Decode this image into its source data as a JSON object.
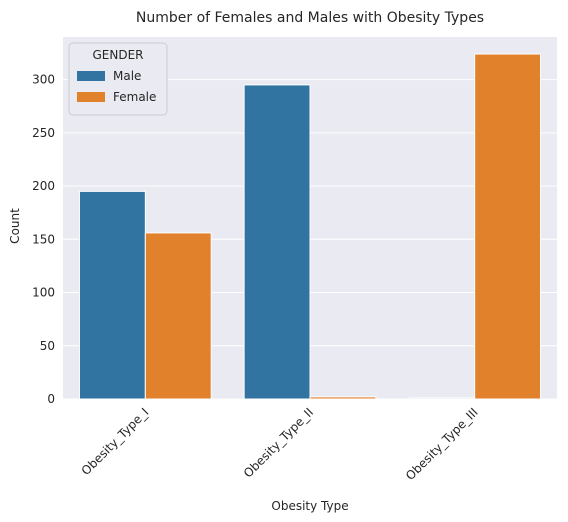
{
  "chart_data": {
    "type": "bar",
    "title": "Number of Females and Males with Obesity Types",
    "xlabel": "Obesity Type",
    "ylabel": "Count",
    "categories": [
      "Obesity_Type_I",
      "Obesity_Type_II",
      "Obesity_Type_III"
    ],
    "series": [
      {
        "name": "Male",
        "values": [
          195,
          295,
          1
        ],
        "color": "#3274a1"
      },
      {
        "name": "Female",
        "values": [
          156,
          2,
          324
        ],
        "color": "#e1812c"
      }
    ],
    "ylim": [
      0,
      340
    ],
    "yticks": [
      0,
      50,
      100,
      150,
      200,
      250,
      300
    ],
    "legend": {
      "title": "GENDER",
      "placement": "top-left"
    },
    "grid": true,
    "background": "#eaeaf2"
  }
}
